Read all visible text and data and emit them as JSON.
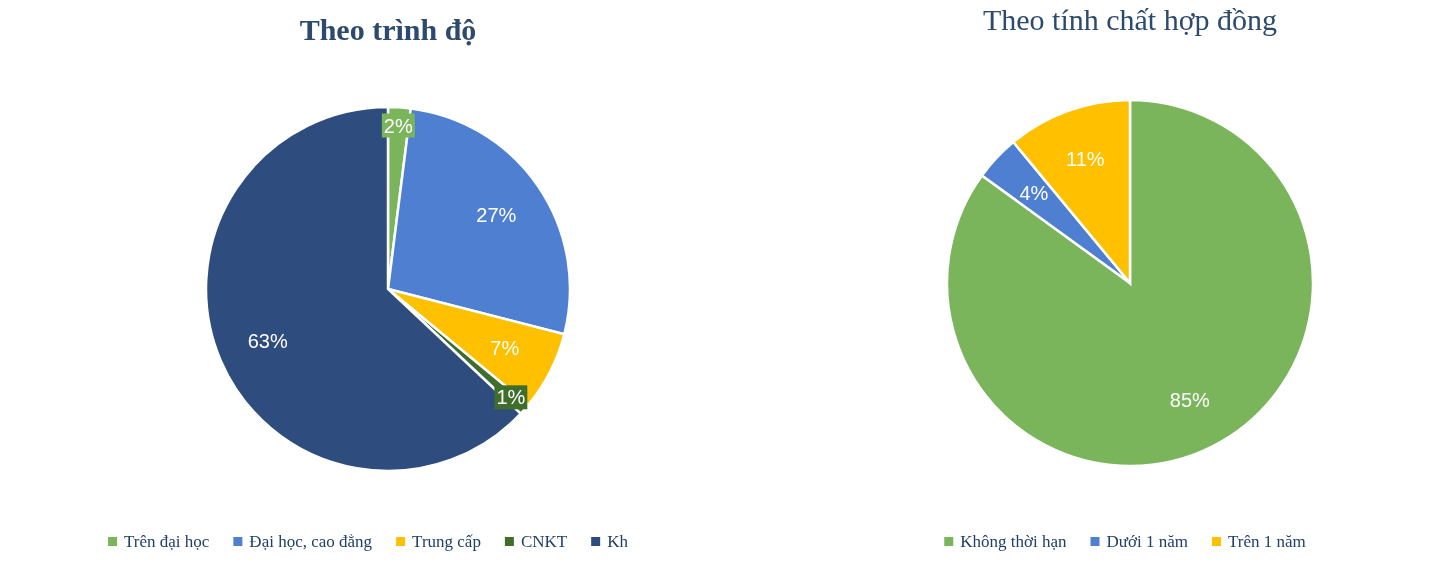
{
  "chart_data": [
    {
      "type": "pie",
      "title": "Theo trình độ",
      "categories": [
        "Trên đại học",
        "Đại học, cao đẳng",
        "Trung cấp",
        "CNKT",
        "Kh"
      ],
      "values": [
        2,
        27,
        7,
        1,
        63
      ],
      "value_labels": [
        "2%",
        "27%",
        "7%",
        "1%",
        "63%"
      ],
      "colors": [
        "#7ab55c",
        "#4f7fd0",
        "#ffc000",
        "#3f6e2c",
        "#2f4c7e"
      ],
      "legend": "bottom"
    },
    {
      "type": "pie",
      "title": "Theo tính chất hợp đồng",
      "categories": [
        "Không thời hạn",
        "Dưới 1 năm",
        "Trên 1 năm"
      ],
      "values": [
        85,
        4,
        11
      ],
      "value_labels": [
        "85%",
        "4%",
        "11%"
      ],
      "colors": [
        "#7ab55c",
        "#4f7fd0",
        "#ffc000"
      ],
      "legend": "bottom"
    }
  ]
}
